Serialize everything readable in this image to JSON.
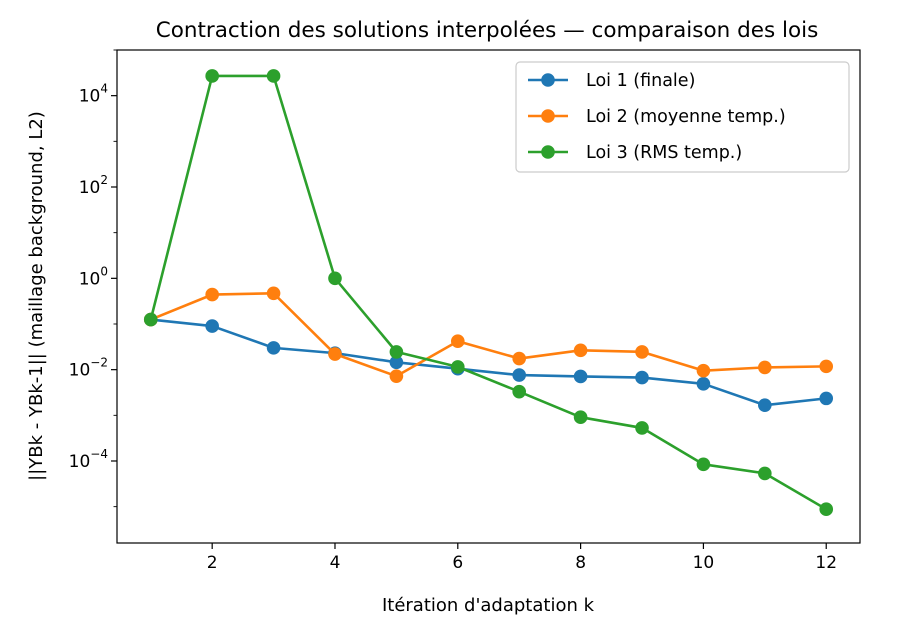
{
  "chart_data": {
    "type": "line",
    "title": "Contraction des solutions interpolées — comparaison des lois",
    "xlabel": "Itération d'adaptation k",
    "ylabel": "||YBk - YBk-1|| (maillage background, L2)",
    "yscale": "log",
    "xlim": [
      0.45,
      12.55
    ],
    "ylim": [
      1.6e-06,
      100000
    ],
    "x_ticks": [
      2,
      4,
      6,
      8,
      10,
      12
    ],
    "y_ticks": [
      {
        "value": 0.0001,
        "base": "10",
        "exp": "−4"
      },
      {
        "value": 0.01,
        "base": "10",
        "exp": "−2"
      },
      {
        "value": 1,
        "base": "10",
        "exp": "0"
      },
      {
        "value": 100,
        "base": "10",
        "exp": "2"
      },
      {
        "value": 10000,
        "base": "10",
        "exp": "4"
      }
    ],
    "grid": false,
    "legend_position": "top-right",
    "x": [
      1,
      2,
      3,
      4,
      5,
      6,
      7,
      8,
      9,
      10,
      11,
      12
    ],
    "series": [
      {
        "name": "Loi 1 (finale)",
        "color": "#1f77b4",
        "values": [
          0.125,
          0.09,
          0.03,
          0.023,
          0.0145,
          0.0105,
          0.0076,
          0.0071,
          0.0067,
          0.0049,
          0.00167,
          0.00235
        ]
      },
      {
        "name": "Loi 2 (moyenne temp.)",
        "color": "#ff7f0e",
        "values": [
          0.125,
          0.44,
          0.47,
          0.022,
          0.0072,
          0.042,
          0.0175,
          0.0265,
          0.0245,
          0.0095,
          0.0112,
          0.0118
        ]
      },
      {
        "name": "Loi 3 (RMS temp.)",
        "color": "#2ca02c",
        "values": [
          0.125,
          27000,
          27000,
          1.0,
          0.0245,
          0.0115,
          0.0033,
          0.00091,
          0.00053,
          8.45e-05,
          5.35e-05,
          8.8e-06
        ]
      }
    ]
  }
}
